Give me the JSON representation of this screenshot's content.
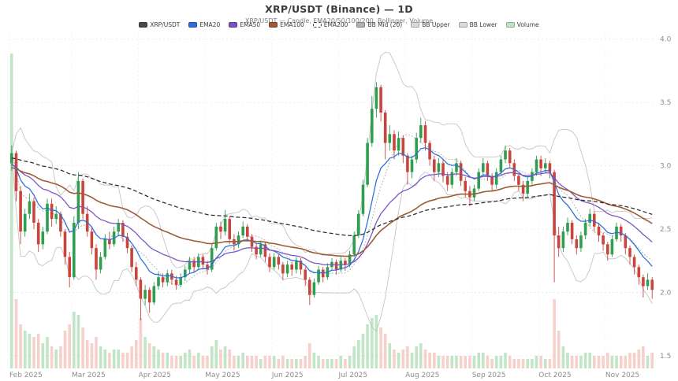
{
  "header": {
    "title": "XRP/USDT (Binance) — 1D",
    "subtitle": "XRP/USDT — Candle, EMA20/50/100/200, Bollinger, Volume"
  },
  "legend": {
    "items": [
      {
        "label": "XRP/USDT",
        "swatch": "#4a4a4a",
        "dashed": false
      },
      {
        "label": "EMA20",
        "swatch": "#2a6fdb",
        "dashed": false
      },
      {
        "label": "EMA50",
        "swatch": "#7b52c1",
        "dashed": false
      },
      {
        "label": "EMA100",
        "swatch": "#9c5b35",
        "dashed": false
      },
      {
        "label": "EMA200",
        "swatch": "#ffffff",
        "dashed": true
      },
      {
        "label": "BB Mid (20)",
        "swatch": "#b0b0b0",
        "dashed": false
      },
      {
        "label": "BB Upper",
        "swatch": "#d9d9d9",
        "dashed": false
      },
      {
        "label": "BB Lower",
        "swatch": "#d9d9d9",
        "dashed": false
      },
      {
        "label": "Volume",
        "swatch": "#bfe3c4",
        "dashed": false
      }
    ]
  },
  "chart_data": {
    "type": "candlestick",
    "title": "XRP/USDT (Binance) — 1D",
    "symbol": "XRP/USDT",
    "exchange": "Binance",
    "timeframe": "1D",
    "ylim": [
      1.4,
      4.06
    ],
    "y_ticks": [
      4.0,
      3.5,
      3.0,
      2.5,
      2.0,
      1.5
    ],
    "days_per_candle": 2,
    "months": [
      {
        "label": "Feb 2025",
        "i": 0
      },
      {
        "label": "Mar 2025",
        "i": 14
      },
      {
        "label": "Apr 2025",
        "i": 29
      },
      {
        "label": "May 2025",
        "i": 44
      },
      {
        "label": "Jun 2025",
        "i": 59
      },
      {
        "label": "Jul 2025",
        "i": 74
      },
      {
        "label": "Aug 2025",
        "i": 89
      },
      {
        "label": "Sep 2025",
        "i": 104
      },
      {
        "label": "Oct 2025",
        "i": 119
      },
      {
        "label": "Nov 2025",
        "i": 134
      }
    ],
    "colors": {
      "up": "#2f9e4f",
      "down": "#c9453c",
      "vol_up": "rgba(118,199,130,0.45)",
      "vol_down": "rgba(238,150,140,0.45)",
      "ema20": "#2a6fdb",
      "ema50": "#7b52c1",
      "ema100": "#9c5b35",
      "ema200": "#2b2b2b",
      "bb": "#c4c4c4",
      "bb_mid": "#b0b0b0",
      "grid": "#e7e7e7",
      "axis_text": "#8c8c8c"
    },
    "indicators": {
      "ema": [
        {
          "period": 20,
          "seed": 3.0
        },
        {
          "period": 50,
          "seed": 3.0
        },
        {
          "period": 100,
          "seed": 2.98
        },
        {
          "period": 200,
          "seed": 3.06
        }
      ],
      "bollinger": {
        "period": 20,
        "stddev": 2
      }
    },
    "ohlcv": [
      [
        3.02,
        3.16,
        2.96,
        3.1,
        100
      ],
      [
        3.1,
        3.12,
        2.72,
        2.8,
        22
      ],
      [
        2.8,
        2.84,
        2.38,
        2.48,
        14
      ],
      [
        2.48,
        2.66,
        2.44,
        2.62,
        12
      ],
      [
        2.62,
        2.78,
        2.58,
        2.72,
        11
      ],
      [
        2.72,
        2.75,
        2.5,
        2.55,
        10
      ],
      [
        2.55,
        2.58,
        2.32,
        2.38,
        11
      ],
      [
        2.38,
        2.52,
        2.34,
        2.48,
        8
      ],
      [
        2.48,
        2.74,
        2.46,
        2.7,
        10
      ],
      [
        2.7,
        2.74,
        2.52,
        2.58,
        7
      ],
      [
        2.58,
        2.68,
        2.54,
        2.62,
        6
      ],
      [
        2.62,
        2.64,
        2.44,
        2.48,
        7
      ],
      [
        2.48,
        2.5,
        2.22,
        2.28,
        12
      ],
      [
        2.28,
        2.32,
        2.04,
        2.12,
        14
      ],
      [
        2.12,
        2.6,
        2.1,
        2.55,
        18
      ],
      [
        2.55,
        2.95,
        2.5,
        2.88,
        17
      ],
      [
        2.88,
        2.9,
        2.58,
        2.62,
        13
      ],
      [
        2.62,
        2.68,
        2.44,
        2.48,
        9
      ],
      [
        2.48,
        2.52,
        2.3,
        2.35,
        8
      ],
      [
        2.35,
        2.38,
        2.1,
        2.18,
        10
      ],
      [
        2.18,
        2.32,
        2.15,
        2.28,
        7
      ],
      [
        2.28,
        2.46,
        2.26,
        2.42,
        6
      ],
      [
        2.42,
        2.48,
        2.34,
        2.38,
        5
      ],
      [
        2.38,
        2.52,
        2.36,
        2.48,
        6
      ],
      [
        2.48,
        2.58,
        2.45,
        2.55,
        6
      ],
      [
        2.55,
        2.57,
        2.4,
        2.44,
        5
      ],
      [
        2.44,
        2.47,
        2.31,
        2.35,
        5
      ],
      [
        2.35,
        2.37,
        2.16,
        2.2,
        7
      ],
      [
        2.2,
        2.24,
        2.05,
        2.1,
        9
      ],
      [
        2.1,
        2.12,
        1.78,
        1.95,
        16
      ],
      [
        1.95,
        2.06,
        1.9,
        2.02,
        10
      ],
      [
        2.02,
        2.04,
        1.84,
        1.92,
        8
      ],
      [
        1.92,
        2.08,
        1.9,
        2.05,
        7
      ],
      [
        2.05,
        2.16,
        2.02,
        2.12,
        6
      ],
      [
        2.12,
        2.15,
        2.04,
        2.08,
        5
      ],
      [
        2.08,
        2.18,
        2.05,
        2.15,
        5
      ],
      [
        2.15,
        2.18,
        2.06,
        2.1,
        4
      ],
      [
        2.1,
        2.13,
        2.02,
        2.06,
        4
      ],
      [
        2.06,
        2.15,
        2.04,
        2.12,
        4
      ],
      [
        2.12,
        2.21,
        2.09,
        2.18,
        5
      ],
      [
        2.18,
        2.28,
        2.15,
        2.25,
        6
      ],
      [
        2.25,
        2.28,
        2.16,
        2.2,
        4
      ],
      [
        2.2,
        2.31,
        2.18,
        2.28,
        5
      ],
      [
        2.28,
        2.3,
        2.18,
        2.22,
        4
      ],
      [
        2.22,
        2.25,
        2.14,
        2.18,
        4
      ],
      [
        2.18,
        2.38,
        2.16,
        2.35,
        7
      ],
      [
        2.35,
        2.55,
        2.33,
        2.52,
        9
      ],
      [
        2.52,
        2.56,
        2.42,
        2.48,
        6
      ],
      [
        2.48,
        2.65,
        2.45,
        2.58,
        7
      ],
      [
        2.58,
        2.6,
        2.38,
        2.42,
        6
      ],
      [
        2.42,
        2.46,
        2.33,
        2.38,
        4
      ],
      [
        2.38,
        2.48,
        2.35,
        2.45,
        4
      ],
      [
        2.45,
        2.56,
        2.43,
        2.52,
        5
      ],
      [
        2.52,
        2.54,
        2.4,
        2.44,
        4
      ],
      [
        2.44,
        2.46,
        2.32,
        2.36,
        4
      ],
      [
        2.36,
        2.39,
        2.26,
        2.3,
        4
      ],
      [
        2.3,
        2.41,
        2.28,
        2.38,
        3
      ],
      [
        2.38,
        2.4,
        2.24,
        2.28,
        4
      ],
      [
        2.28,
        2.31,
        2.16,
        2.2,
        4
      ],
      [
        2.2,
        2.31,
        2.18,
        2.28,
        4
      ],
      [
        2.28,
        2.3,
        2.18,
        2.22,
        3
      ],
      [
        2.22,
        2.24,
        2.1,
        2.15,
        4
      ],
      [
        2.15,
        2.25,
        2.12,
        2.22,
        3
      ],
      [
        2.22,
        2.24,
        2.13,
        2.18,
        3
      ],
      [
        2.18,
        2.28,
        2.15,
        2.25,
        3
      ],
      [
        2.25,
        2.27,
        2.14,
        2.18,
        3
      ],
      [
        2.18,
        2.2,
        2.05,
        2.1,
        4
      ],
      [
        2.1,
        2.12,
        1.9,
        1.98,
        8
      ],
      [
        1.98,
        2.11,
        1.96,
        2.08,
        5
      ],
      [
        2.08,
        2.21,
        2.06,
        2.18,
        4
      ],
      [
        2.18,
        2.2,
        2.08,
        2.12,
        3
      ],
      [
        2.12,
        2.23,
        2.1,
        2.2,
        3
      ],
      [
        2.2,
        2.27,
        2.17,
        2.24,
        3
      ],
      [
        2.24,
        2.26,
        2.14,
        2.18,
        3
      ],
      [
        2.18,
        2.28,
        2.16,
        2.25,
        4
      ],
      [
        2.25,
        2.27,
        2.17,
        2.22,
        3
      ],
      [
        2.22,
        2.33,
        2.2,
        2.3,
        4
      ],
      [
        2.3,
        2.48,
        2.28,
        2.45,
        7
      ],
      [
        2.45,
        2.65,
        2.43,
        2.62,
        9
      ],
      [
        2.62,
        2.89,
        2.6,
        2.85,
        11
      ],
      [
        2.85,
        3.22,
        2.83,
        3.18,
        14
      ],
      [
        3.18,
        3.55,
        3.15,
        3.45,
        16
      ],
      [
        3.45,
        3.66,
        3.38,
        3.62,
        17
      ],
      [
        3.62,
        3.64,
        3.35,
        3.42,
        13
      ],
      [
        3.42,
        3.44,
        3.05,
        3.18,
        11
      ],
      [
        3.18,
        3.32,
        3.12,
        3.25,
        8
      ],
      [
        3.25,
        3.28,
        3.05,
        3.12,
        6
      ],
      [
        3.12,
        3.27,
        3.08,
        3.22,
        5
      ],
      [
        3.22,
        3.24,
        3.02,
        3.08,
        6
      ],
      [
        3.08,
        3.1,
        2.85,
        2.95,
        7
      ],
      [
        2.95,
        3.08,
        2.9,
        3.05,
        5
      ],
      [
        3.05,
        3.26,
        3.02,
        3.22,
        7
      ],
      [
        3.22,
        3.38,
        3.18,
        3.32,
        8
      ],
      [
        3.32,
        3.35,
        3.12,
        3.18,
        6
      ],
      [
        3.18,
        3.2,
        3.0,
        3.05,
        5
      ],
      [
        3.05,
        3.08,
        2.88,
        2.95,
        5
      ],
      [
        2.95,
        3.06,
        2.91,
        3.02,
        4
      ],
      [
        3.02,
        3.05,
        2.87,
        2.92,
        4
      ],
      [
        2.92,
        2.95,
        2.8,
        2.85,
        4
      ],
      [
        2.85,
        2.98,
        2.82,
        2.95,
        4
      ],
      [
        2.95,
        3.06,
        2.92,
        3.02,
        4
      ],
      [
        3.02,
        3.04,
        2.84,
        2.88,
        4
      ],
      [
        2.88,
        2.91,
        2.75,
        2.8,
        4
      ],
      [
        2.8,
        2.84,
        2.68,
        2.75,
        4
      ],
      [
        2.75,
        2.85,
        2.72,
        2.82,
        4
      ],
      [
        2.82,
        2.98,
        2.8,
        2.95,
        5
      ],
      [
        2.95,
        3.06,
        2.92,
        3.02,
        5
      ],
      [
        3.02,
        3.04,
        2.88,
        2.92,
        4
      ],
      [
        2.92,
        2.94,
        2.8,
        2.85,
        3
      ],
      [
        2.85,
        2.98,
        2.82,
        2.95,
        4
      ],
      [
        2.95,
        3.08,
        2.92,
        3.05,
        4
      ],
      [
        3.05,
        3.16,
        3.02,
        3.12,
        5
      ],
      [
        3.12,
        3.14,
        2.98,
        3.02,
        4
      ],
      [
        3.02,
        3.05,
        2.88,
        2.92,
        3
      ],
      [
        2.92,
        2.94,
        2.8,
        2.85,
        3
      ],
      [
        2.85,
        2.88,
        2.72,
        2.78,
        3
      ],
      [
        2.78,
        2.91,
        2.75,
        2.88,
        3
      ],
      [
        2.88,
        2.98,
        2.85,
        2.95,
        3
      ],
      [
        2.95,
        3.08,
        2.92,
        3.05,
        4
      ],
      [
        3.05,
        3.08,
        2.92,
        2.98,
        4
      ],
      [
        2.98,
        3.06,
        2.94,
        3.02,
        3
      ],
      [
        3.02,
        3.04,
        2.9,
        2.95,
        3
      ],
      [
        2.95,
        2.97,
        2.08,
        2.45,
        22
      ],
      [
        2.45,
        2.52,
        2.28,
        2.35,
        12
      ],
      [
        2.35,
        2.52,
        2.32,
        2.48,
        7
      ],
      [
        2.48,
        2.59,
        2.45,
        2.55,
        5
      ],
      [
        2.55,
        2.57,
        2.38,
        2.42,
        4
      ],
      [
        2.42,
        2.45,
        2.3,
        2.35,
        4
      ],
      [
        2.35,
        2.48,
        2.32,
        2.45,
        4
      ],
      [
        2.45,
        2.58,
        2.42,
        2.55,
        5
      ],
      [
        2.55,
        2.66,
        2.52,
        2.62,
        5
      ],
      [
        2.62,
        2.64,
        2.48,
        2.52,
        4
      ],
      [
        2.52,
        2.55,
        2.4,
        2.45,
        4
      ],
      [
        2.45,
        2.47,
        2.33,
        2.38,
        4
      ],
      [
        2.38,
        2.4,
        2.25,
        2.3,
        5
      ],
      [
        2.3,
        2.45,
        2.28,
        2.42,
        4
      ],
      [
        2.42,
        2.55,
        2.4,
        2.52,
        4
      ],
      [
        2.52,
        2.54,
        2.4,
        2.45,
        4
      ],
      [
        2.45,
        2.47,
        2.3,
        2.35,
        4
      ],
      [
        2.35,
        2.37,
        2.22,
        2.28,
        5
      ],
      [
        2.28,
        2.3,
        2.14,
        2.2,
        5
      ],
      [
        2.2,
        2.22,
        2.06,
        2.12,
        6
      ],
      [
        2.12,
        2.14,
        1.96,
        2.05,
        7
      ],
      [
        2.05,
        2.15,
        2.02,
        2.1,
        4
      ],
      [
        2.1,
        2.12,
        1.95,
        2.02,
        5
      ]
    ]
  }
}
